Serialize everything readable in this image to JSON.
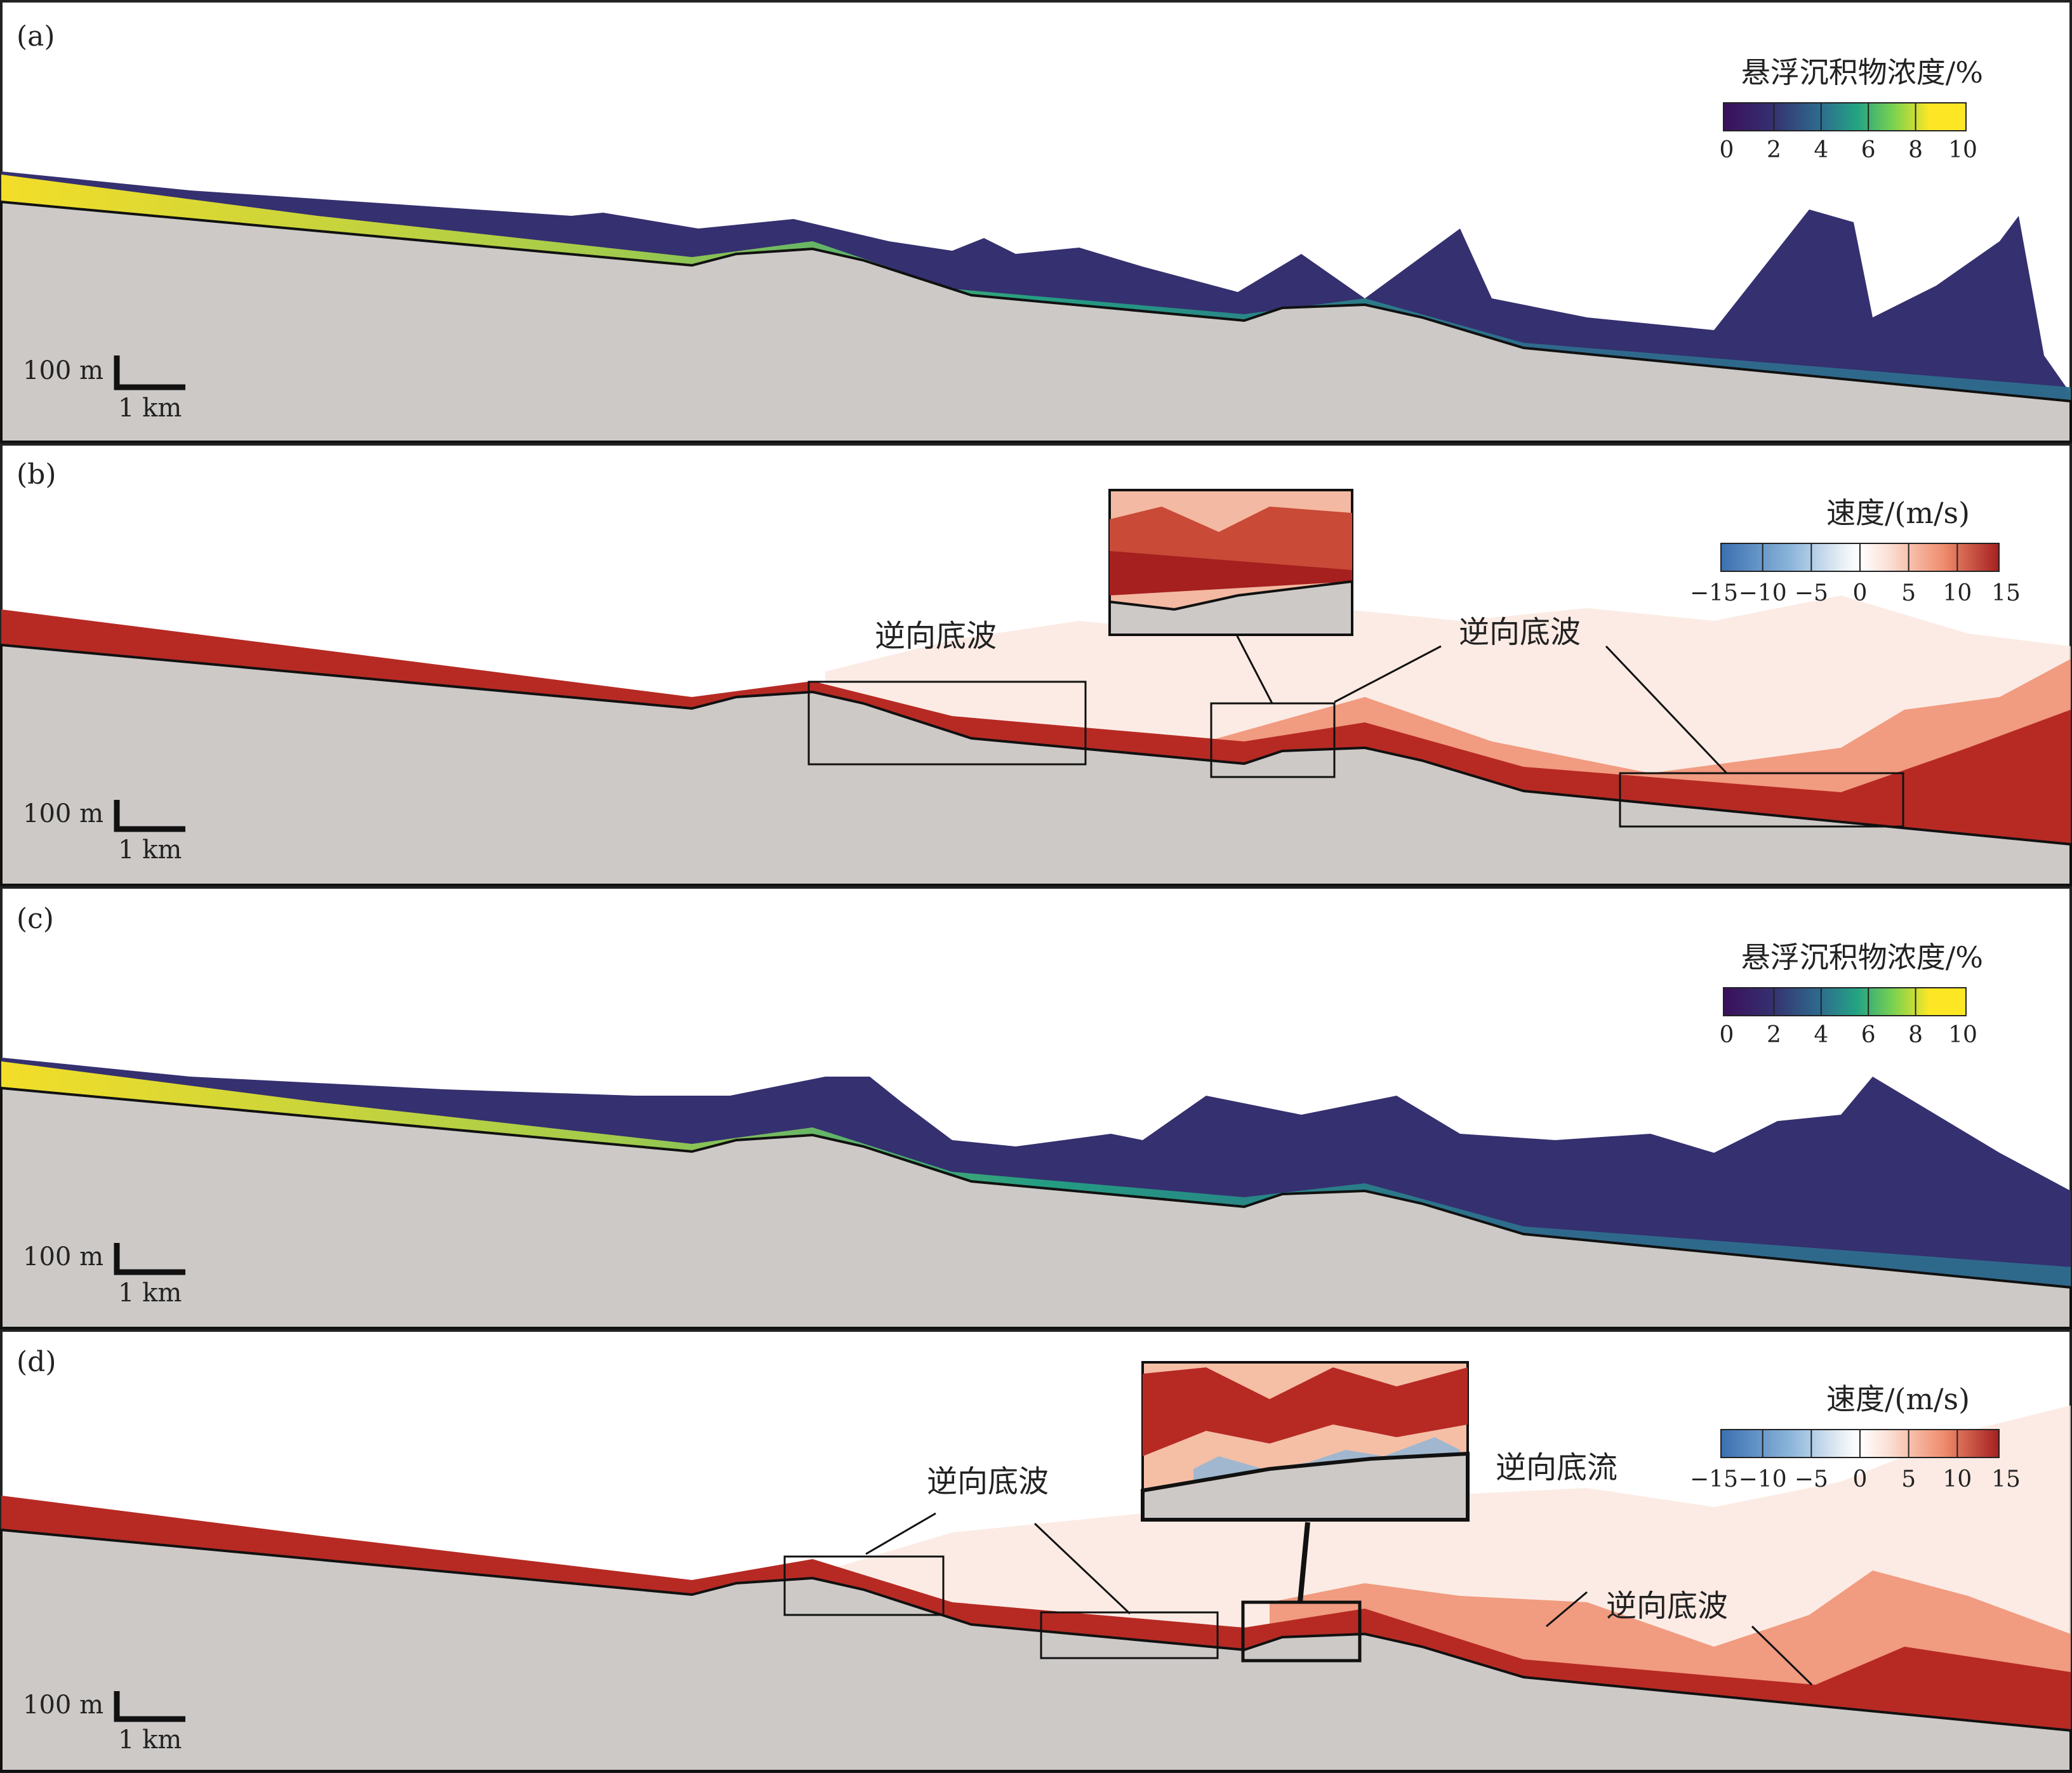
{
  "panels": [
    {
      "label": "(a)",
      "type": "concentration",
      "colorbar": {
        "title": "悬浮沉积物浓度/%",
        "ticks": [
          "0",
          "2",
          "4",
          "6",
          "8",
          "10"
        ]
      },
      "scale_bar": {
        "vertical": "100 m",
        "horizontal": "1 km"
      }
    },
    {
      "label": "(b)",
      "type": "velocity",
      "colorbar": {
        "title": "速度/(m/s)",
        "ticks": [
          "−15",
          "−10",
          "−5",
          "0",
          "5",
          "10",
          "15"
        ]
      },
      "scale_bar": {
        "vertical": "100 m",
        "horizontal": "1 km"
      },
      "annotations": [
        "逆向底波",
        "逆向底波"
      ]
    },
    {
      "label": "(c)",
      "type": "concentration",
      "colorbar": {
        "title": "悬浮沉积物浓度/%",
        "ticks": [
          "0",
          "2",
          "4",
          "6",
          "8",
          "10"
        ]
      },
      "scale_bar": {
        "vertical": "100 m",
        "horizontal": "1 km"
      }
    },
    {
      "label": "(d)",
      "type": "velocity",
      "colorbar": {
        "title": "速度/(m/s)",
        "ticks": [
          "−15",
          "−10",
          "−5",
          "0",
          "5",
          "10",
          "15"
        ]
      },
      "scale_bar": {
        "vertical": "100 m",
        "horizontal": "1 km"
      },
      "annotations": [
        "逆向底波",
        "逆向底流",
        "逆向底波"
      ]
    }
  ],
  "colors": {
    "seabed": "#ccc9c7",
    "concentration_scale": [
      "#3b0f5c",
      "#35306f",
      "#2e6c8e",
      "#23a383",
      "#7ad151",
      "#fde725"
    ],
    "velocity_scale": [
      "#3a6fb0",
      "#8bb5da",
      "#dde9f3",
      "#fbe1d6",
      "#ef8d6e",
      "#c0322b",
      "#a5201f"
    ]
  }
}
